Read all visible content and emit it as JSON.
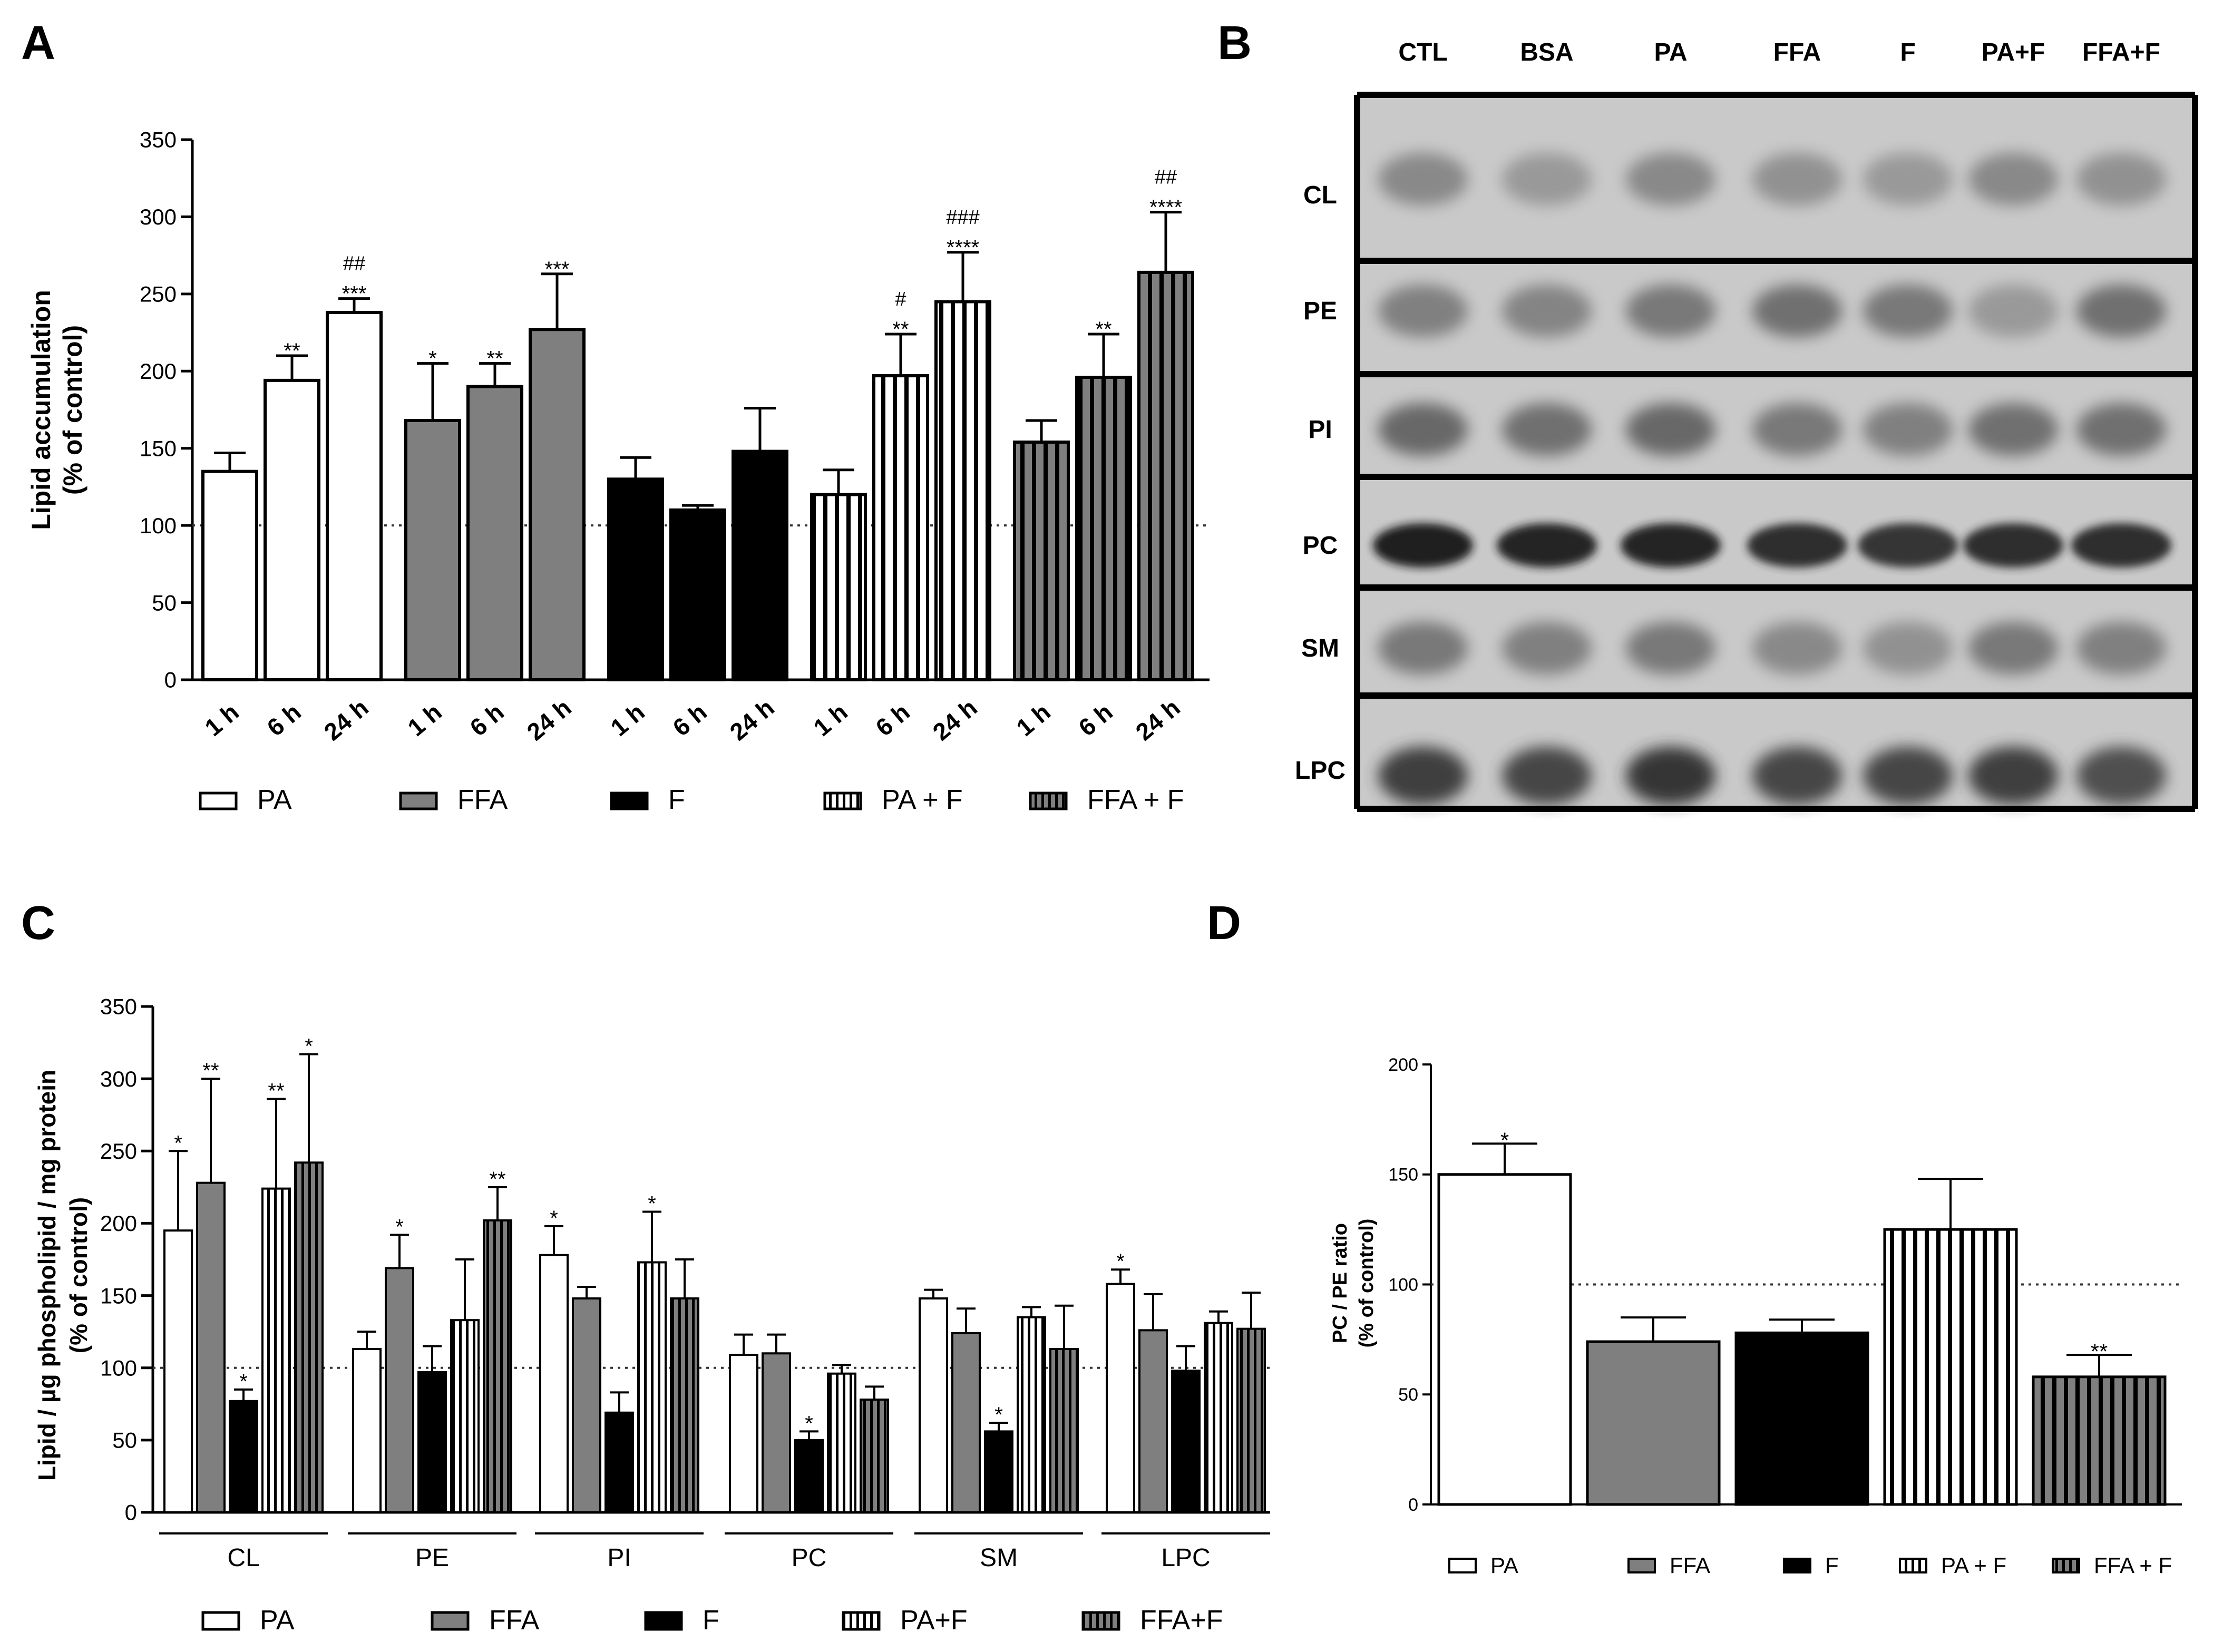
{
  "colors": {
    "black": "#000000",
    "gray": "#7f7f7f",
    "white": "#ffffff",
    "blot_bg": "#c6c6c6",
    "blot_frame": "#000000"
  },
  "legend5": [
    {
      "key": "PA",
      "label": "PA",
      "pattern": "white"
    },
    {
      "key": "FFA",
      "label": "FFA",
      "pattern": "gray"
    },
    {
      "key": "F",
      "label": "F",
      "pattern": "black"
    },
    {
      "key": "PAF",
      "label": "PA + F",
      "pattern": "white-stripe"
    },
    {
      "key": "FFAF",
      "label": "FFA + F",
      "pattern": "gray-stripe"
    }
  ],
  "panels": {
    "A": {
      "label": "A",
      "chart_data": {
        "type": "bar",
        "ylabel_line1": "Lipid accumulation",
        "ylabel_line2": "(% of control)",
        "ylim": [
          0,
          350
        ],
        "yticks": [
          0,
          50,
          100,
          150,
          200,
          250,
          300,
          350
        ],
        "reference_line": 100,
        "groups": [
          {
            "series": "PA",
            "pattern": "white",
            "bars": [
              {
                "label": "1 h",
                "value": 135,
                "err": 12,
                "stars": "",
                "hash": ""
              },
              {
                "label": "6 h",
                "value": 194,
                "err": 16,
                "stars": "**",
                "hash": ""
              },
              {
                "label": "24 h",
                "value": 238,
                "err": 9,
                "stars": "***",
                "hash": "##"
              }
            ]
          },
          {
            "series": "FFA",
            "pattern": "gray",
            "bars": [
              {
                "label": "1 h",
                "value": 168,
                "err": 37,
                "stars": "*",
                "hash": ""
              },
              {
                "label": "6 h",
                "value": 190,
                "err": 15,
                "stars": "**",
                "hash": ""
              },
              {
                "label": "24 h",
                "value": 227,
                "err": 36,
                "stars": "***",
                "hash": ""
              }
            ]
          },
          {
            "series": "F",
            "pattern": "black",
            "bars": [
              {
                "label": "1 h",
                "value": 130,
                "err": 14,
                "stars": "",
                "hash": ""
              },
              {
                "label": "6 h",
                "value": 110,
                "err": 3,
                "stars": "",
                "hash": ""
              },
              {
                "label": "24 h",
                "value": 148,
                "err": 28,
                "stars": "",
                "hash": ""
              }
            ]
          },
          {
            "series": "PA + F",
            "pattern": "white-stripe",
            "bars": [
              {
                "label": "1 h",
                "value": 120,
                "err": 16,
                "stars": "",
                "hash": ""
              },
              {
                "label": "6 h",
                "value": 197,
                "err": 27,
                "stars": "**",
                "hash": "#"
              },
              {
                "label": "24 h",
                "value": 245,
                "err": 32,
                "stars": "****",
                "hash": "###"
              }
            ]
          },
          {
            "series": "FFA + F",
            "pattern": "gray-stripe",
            "bars": [
              {
                "label": "1 h",
                "value": 154,
                "err": 14,
                "stars": "",
                "hash": ""
              },
              {
                "label": "6 h",
                "value": 196,
                "err": 28,
                "stars": "**",
                "hash": ""
              },
              {
                "label": "24 h",
                "value": 264,
                "err": 39,
                "stars": "****",
                "hash": "##"
              }
            ]
          }
        ]
      }
    },
    "B": {
      "label": "B",
      "lanes": [
        "CTL",
        "BSA",
        "PA",
        "FFA",
        "F",
        "PA+F",
        "FFA+F"
      ],
      "rows": [
        "CL",
        "PE",
        "PI",
        "PC",
        "SM",
        "LPC"
      ]
    },
    "C": {
      "label": "C",
      "chart_data": {
        "type": "bar",
        "ylabel_line1": "Lipid / µg phospholipid / mg protein",
        "ylabel_line2": "(% of control)",
        "ylim": [
          0,
          350
        ],
        "yticks": [
          0,
          50,
          100,
          150,
          200,
          250,
          300,
          350
        ],
        "reference_line": 100,
        "series": [
          "PA",
          "FFA",
          "F",
          "PA+F",
          "FFA+F"
        ],
        "categories": [
          {
            "label": "CL",
            "values": [
              195,
              228,
              77,
              224,
              242
            ],
            "errs": [
              55,
              72,
              8,
              62,
              75
            ],
            "stars": [
              "*",
              "**",
              "*",
              "**",
              "*"
            ]
          },
          {
            "label": "PE",
            "values": [
              113,
              169,
              97,
              133,
              202
            ],
            "errs": [
              12,
              23,
              18,
              42,
              23
            ],
            "stars": [
              "",
              "*",
              "",
              "",
              "**"
            ]
          },
          {
            "label": "PI",
            "values": [
              178,
              148,
              69,
              173,
              148
            ],
            "errs": [
              20,
              8,
              14,
              35,
              27
            ],
            "stars": [
              "*",
              "",
              "",
              "*",
              ""
            ]
          },
          {
            "label": "PC",
            "values": [
              109,
              110,
              50,
              96,
              78
            ],
            "errs": [
              14,
              13,
              6,
              6,
              9
            ],
            "stars": [
              "",
              "",
              "*",
              "",
              ""
            ]
          },
          {
            "label": "SM",
            "values": [
              148,
              124,
              56,
              135,
              113
            ],
            "errs": [
              6,
              17,
              6,
              7,
              30
            ],
            "stars": [
              "",
              "",
              "*",
              "",
              ""
            ]
          },
          {
            "label": "LPC",
            "values": [
              158,
              126,
              98,
              131,
              127
            ],
            "errs": [
              10,
              25,
              17,
              8,
              25
            ],
            "stars": [
              "*",
              "",
              "",
              "",
              ""
            ]
          }
        ],
        "legend_labels": [
          "PA",
          "FFA",
          "F",
          "PA+F",
          "FFA+F"
        ]
      }
    },
    "D": {
      "label": "D",
      "chart_data": {
        "type": "bar",
        "ylabel_line1": "PC / PE ratio",
        "ylabel_line2": "(% of control)",
        "ylim": [
          0,
          200
        ],
        "yticks": [
          0,
          50,
          100,
          150,
          200
        ],
        "reference_line": 100,
        "categories": [
          "PA",
          "FFA",
          "F",
          "PA + F",
          "FFA + F"
        ],
        "values": [
          150,
          74,
          78,
          125,
          58
        ],
        "errs": [
          14,
          11,
          6,
          23,
          10
        ],
        "stars": [
          "*",
          "",
          "",
          "",
          "**"
        ]
      }
    }
  }
}
